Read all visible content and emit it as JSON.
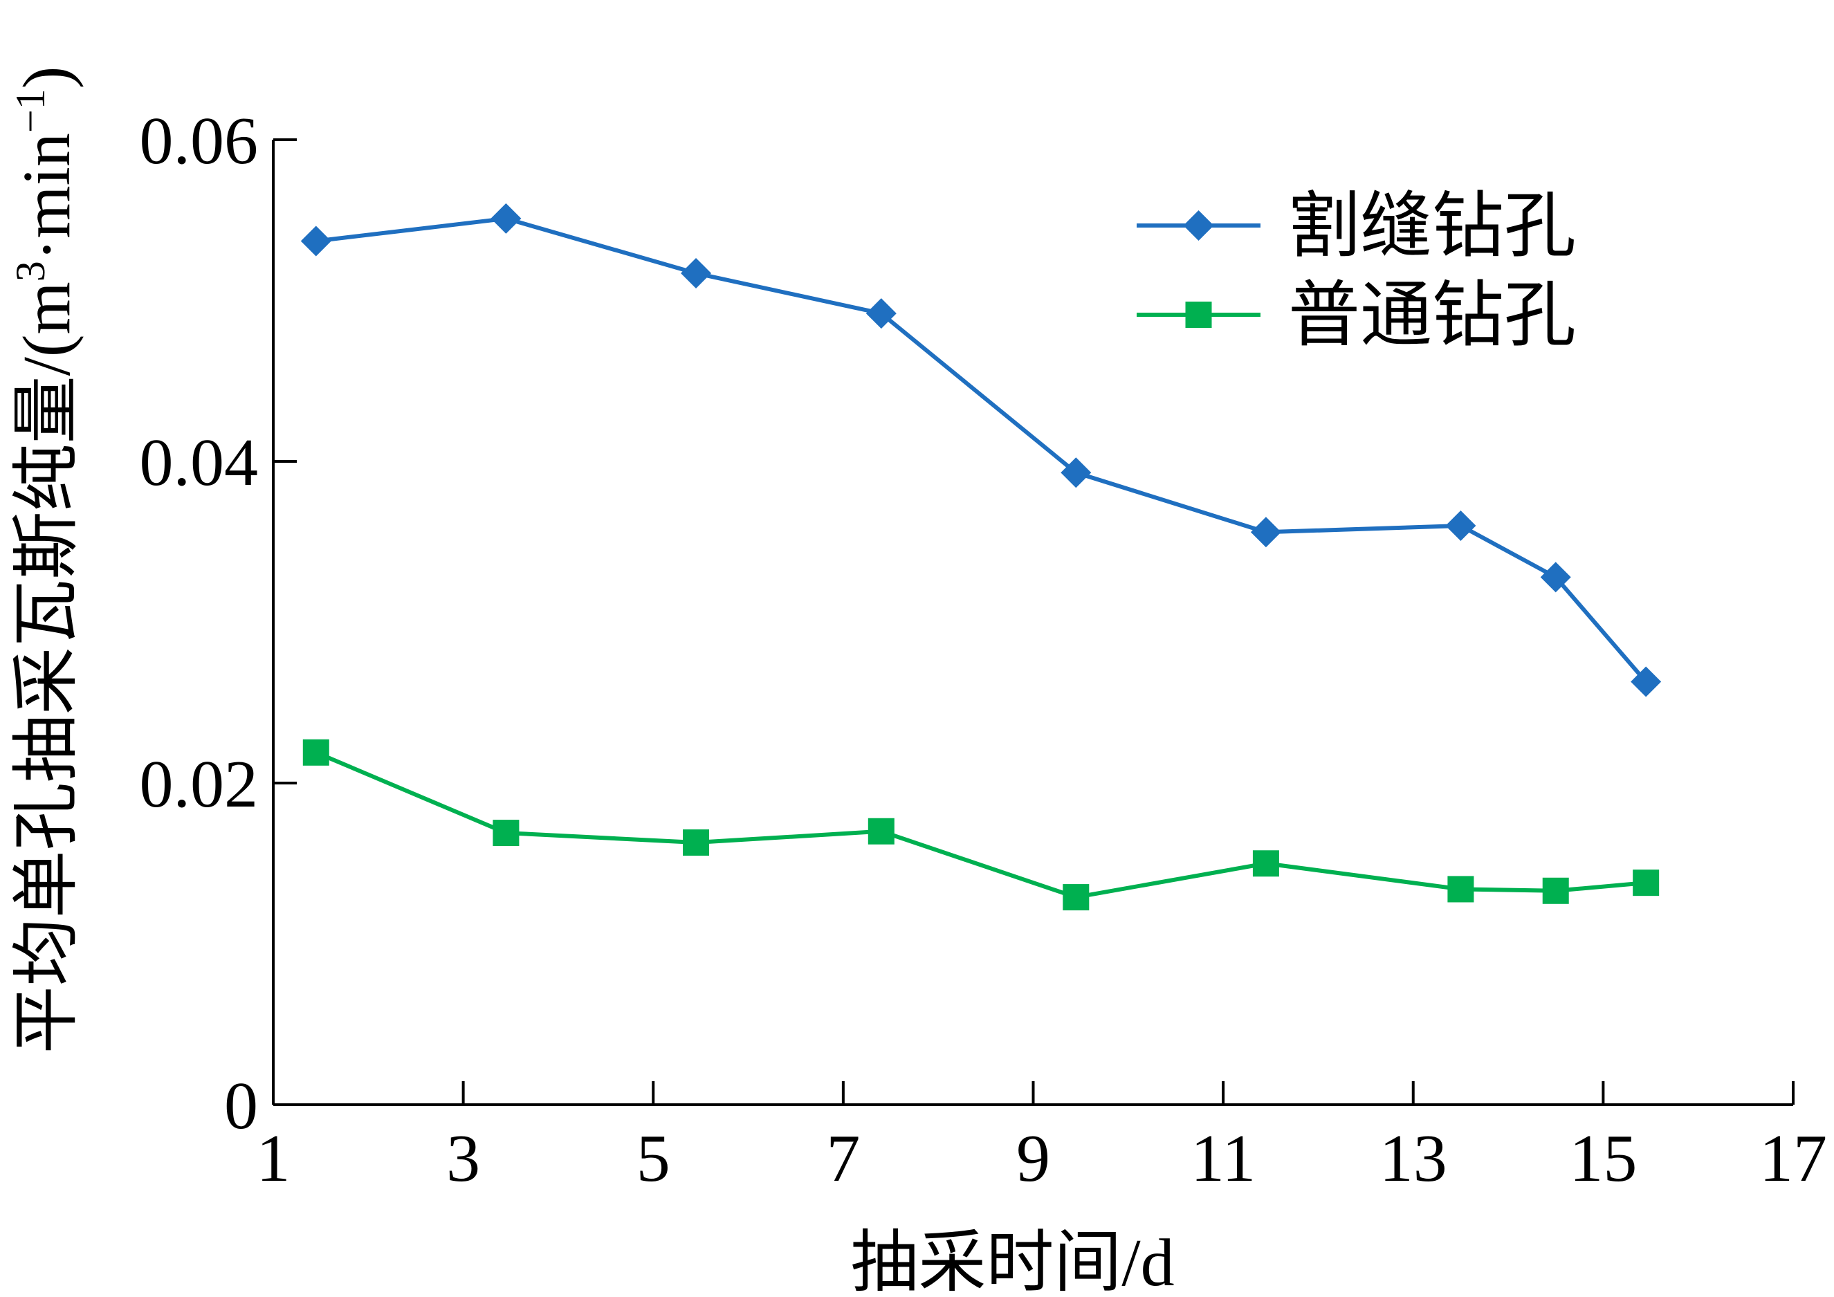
{
  "chart_data": {
    "type": "line",
    "xlabel": "抽采时间/d",
    "ylabel": "平均单孔抽采瓦斯纯量/(m³·min⁻¹)",
    "ylabel_main": "平均单孔抽采瓦斯纯量/(m",
    "ylabel_sup1": "3",
    "ylabel_mid": "·min",
    "ylabel_sup2": "−1",
    "ylabel_end": ")",
    "xlim": [
      1,
      17
    ],
    "ylim": [
      0,
      0.06
    ],
    "xticks": [
      1,
      3,
      5,
      7,
      9,
      11,
      13,
      15,
      17
    ],
    "xtick_labels": [
      "1",
      "3",
      "5",
      "7",
      "9",
      "11",
      "13",
      "15",
      "17"
    ],
    "yticks": [
      0,
      0.02,
      0.04,
      0.06
    ],
    "ytick_labels": [
      "0",
      "0.02",
      "0.04",
      "0.06"
    ],
    "grid": false,
    "legend_position": "top-right",
    "series": [
      {
        "name": "割缝钻孔",
        "color": "#1f6fc0",
        "marker": "diamond",
        "x": [
          1.45,
          3.45,
          5.45,
          7.4,
          9.45,
          11.45,
          13.5,
          14.5,
          15.45
        ],
        "y": [
          0.0537,
          0.0551,
          0.0517,
          0.0492,
          0.0393,
          0.0356,
          0.036,
          0.0328,
          0.0263
        ]
      },
      {
        "name": "普通钻孔",
        "color": "#00b050",
        "marker": "square",
        "x": [
          1.45,
          3.45,
          5.45,
          7.4,
          9.45,
          11.45,
          13.5,
          14.5,
          15.45
        ],
        "y": [
          0.0219,
          0.0169,
          0.0163,
          0.017,
          0.0129,
          0.015,
          0.0134,
          0.0133,
          0.0138
        ]
      }
    ]
  }
}
